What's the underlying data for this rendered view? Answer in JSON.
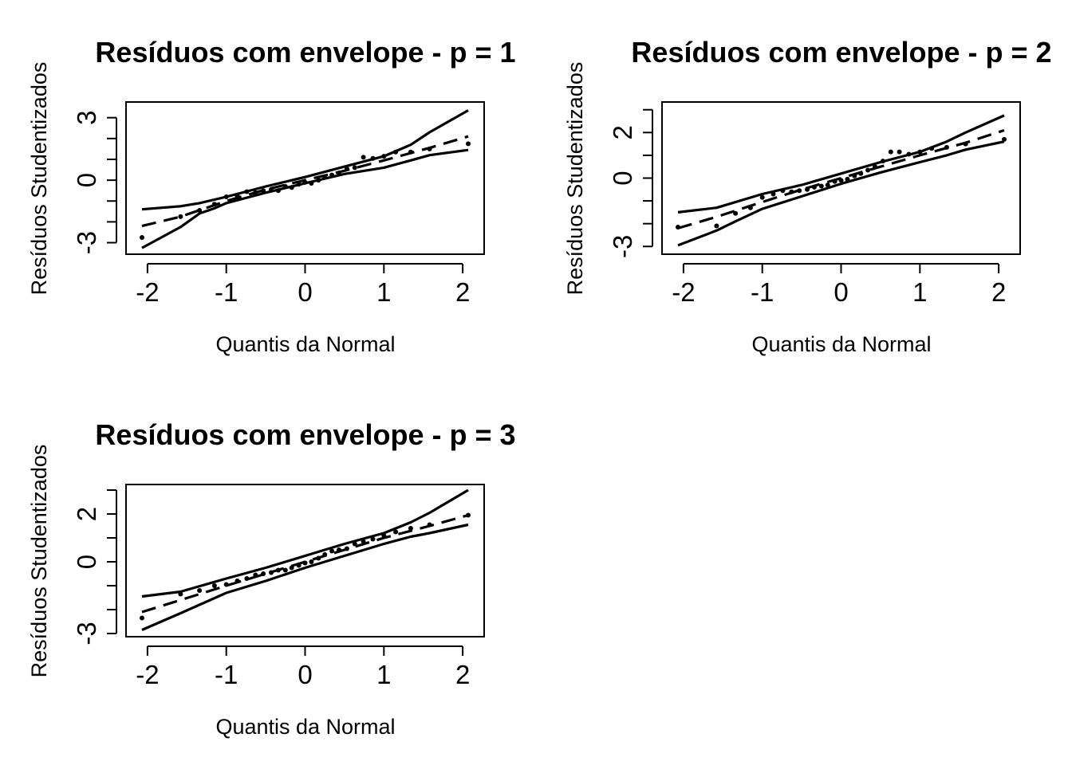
{
  "chart_data": [
    {
      "type": "scatter",
      "title": "Resíduos com envelope - p = 1",
      "xlabel": "Quantis da Normal",
      "ylabel": "Resíduos Studentizados",
      "xlim": [
        -2.1,
        2.1
      ],
      "ylim": [
        -3.4,
        3.6
      ],
      "xticks": [
        -2,
        -1,
        0,
        1,
        2
      ],
      "yticks": [
        -3,
        -2,
        -1,
        0,
        1,
        2,
        3
      ],
      "ytick_labels": [
        "-3",
        "",
        "",
        "0",
        "",
        "",
        "3"
      ],
      "x": [
        -2.07,
        -1.58,
        -1.34,
        -1.15,
        -1.0,
        -0.86,
        -0.74,
        -0.63,
        -0.53,
        -0.43,
        -0.34,
        -0.25,
        -0.17,
        -0.08,
        0.0,
        0.08,
        0.17,
        0.25,
        0.34,
        0.43,
        0.53,
        0.63,
        0.74,
        0.86,
        1.0,
        1.15,
        1.34,
        1.58,
        2.07
      ],
      "y": [
        -2.75,
        -1.75,
        -1.45,
        -1.15,
        -0.8,
        -0.75,
        -0.55,
        -0.6,
        -0.5,
        -0.45,
        -0.5,
        -0.3,
        -0.35,
        -0.2,
        -0.1,
        -0.15,
        0.0,
        0.15,
        0.25,
        0.35,
        0.55,
        0.6,
        1.1,
        1.05,
        1.15,
        1.35,
        1.35,
        1.5,
        1.75
      ],
      "series": [
        {
          "name": "envelope-lower",
          "x": [
            -2.07,
            -1.58,
            -1.34,
            -1.15,
            -1.0,
            -0.5,
            0.0,
            0.5,
            1.0,
            1.34,
            1.58,
            2.07
          ],
          "values": [
            -3.25,
            -2.25,
            -1.6,
            -1.35,
            -1.1,
            -0.6,
            -0.15,
            0.3,
            0.6,
            0.95,
            1.2,
            1.45
          ]
        },
        {
          "name": "envelope-upper",
          "x": [
            -2.07,
            -1.58,
            -1.34,
            -1.0,
            -0.5,
            0.0,
            0.5,
            1.0,
            1.34,
            1.58,
            2.07
          ],
          "values": [
            -1.4,
            -1.25,
            -1.1,
            -0.8,
            -0.3,
            0.15,
            0.65,
            1.15,
            1.7,
            2.3,
            3.35
          ]
        },
        {
          "name": "mean",
          "x": [
            -2.07,
            -1.58,
            -1.0,
            -0.5,
            0.0,
            0.5,
            1.0,
            1.58,
            2.07
          ],
          "values": [
            -2.2,
            -1.75,
            -1.0,
            -0.45,
            0.0,
            0.45,
            0.95,
            1.55,
            2.1
          ]
        }
      ]
    },
    {
      "type": "scatter",
      "title": "Resíduos com envelope - p = 2",
      "xlabel": "Quantis da Normal",
      "ylabel": "Resíduos Studentizados",
      "xlim": [
        -2.1,
        2.1
      ],
      "ylim": [
        -3.2,
        3.2
      ],
      "xticks": [
        -2,
        -1,
        0,
        1,
        2
      ],
      "yticks": [
        -3,
        -2,
        -1,
        0,
        1,
        2,
        3
      ],
      "ytick_labels": [
        "-3",
        "",
        "",
        "0",
        "",
        "2",
        ""
      ],
      "x": [
        -2.07,
        -1.58,
        -1.34,
        -1.15,
        -1.0,
        -0.86,
        -0.74,
        -0.63,
        -0.53,
        -0.43,
        -0.34,
        -0.25,
        -0.17,
        -0.08,
        0.0,
        0.08,
        0.17,
        0.25,
        0.34,
        0.43,
        0.53,
        0.63,
        0.74,
        0.86,
        1.0,
        1.15,
        1.34,
        1.58,
        2.07
      ],
      "y": [
        -2.15,
        -2.1,
        -1.55,
        -1.3,
        -0.85,
        -0.7,
        -0.55,
        -0.6,
        -0.55,
        -0.5,
        -0.4,
        -0.35,
        -0.3,
        -0.15,
        -0.1,
        -0.05,
        0.1,
        0.2,
        0.35,
        0.5,
        0.75,
        1.15,
        1.15,
        1.05,
        1.15,
        1.3,
        1.35,
        1.5,
        1.7
      ],
      "series": [
        {
          "name": "envelope-lower",
          "x": [
            -2.07,
            -1.58,
            -1.34,
            -1.0,
            -0.5,
            0.0,
            0.5,
            1.0,
            1.34,
            1.58,
            2.07
          ],
          "values": [
            -2.95,
            -2.3,
            -1.9,
            -1.35,
            -0.8,
            -0.25,
            0.25,
            0.7,
            1.0,
            1.25,
            1.6
          ]
        },
        {
          "name": "envelope-upper",
          "x": [
            -2.07,
            -1.58,
            -1.0,
            -0.5,
            0.0,
            0.5,
            1.0,
            1.34,
            1.58,
            2.07
          ],
          "values": [
            -1.5,
            -1.3,
            -0.7,
            -0.3,
            0.2,
            0.7,
            1.15,
            1.6,
            2.0,
            2.75
          ]
        },
        {
          "name": "mean",
          "x": [
            -2.07,
            -1.58,
            -1.0,
            -0.5,
            0.0,
            0.5,
            1.0,
            1.58,
            2.07
          ],
          "values": [
            -2.2,
            -1.7,
            -1.05,
            -0.5,
            0.0,
            0.5,
            1.0,
            1.55,
            2.1
          ]
        }
      ]
    },
    {
      "type": "scatter",
      "title": "Resíduos com envelope - p = 3",
      "xlabel": "Quantis da Normal",
      "ylabel": "Resíduos Studentizados",
      "xlim": [
        -2.1,
        2.1
      ],
      "ylim": [
        -3.0,
        3.1
      ],
      "xticks": [
        -2,
        -1,
        0,
        1,
        2
      ],
      "yticks": [
        -3,
        -2,
        -1,
        0,
        1,
        2,
        3
      ],
      "ytick_labels": [
        "-3",
        "",
        "",
        "0",
        "",
        "2",
        ""
      ],
      "x": [
        -2.07,
        -1.58,
        -1.34,
        -1.15,
        -1.0,
        -0.86,
        -0.74,
        -0.63,
        -0.53,
        -0.43,
        -0.34,
        -0.25,
        -0.17,
        -0.08,
        0.0,
        0.08,
        0.17,
        0.25,
        0.34,
        0.43,
        0.53,
        0.63,
        0.74,
        0.86,
        1.0,
        1.15,
        1.34,
        1.58,
        2.07
      ],
      "y": [
        -2.35,
        -1.35,
        -1.2,
        -1.0,
        -0.95,
        -0.8,
        -0.7,
        -0.55,
        -0.5,
        -0.45,
        -0.35,
        -0.35,
        -0.25,
        -0.15,
        -0.05,
        0.0,
        0.15,
        0.3,
        0.45,
        0.5,
        0.55,
        0.75,
        0.85,
        0.95,
        1.1,
        1.25,
        1.4,
        1.55,
        1.95
      ],
      "series": [
        {
          "name": "envelope-lower",
          "x": [
            -2.07,
            -1.58,
            -1.0,
            -0.5,
            0.0,
            0.5,
            1.0,
            1.34,
            1.58,
            2.07
          ],
          "values": [
            -2.85,
            -2.15,
            -1.3,
            -0.8,
            -0.25,
            0.25,
            0.75,
            1.05,
            1.2,
            1.55
          ]
        },
        {
          "name": "envelope-upper",
          "x": [
            -2.07,
            -1.58,
            -1.0,
            -0.5,
            0.0,
            0.5,
            1.0,
            1.34,
            1.58,
            2.07
          ],
          "values": [
            -1.45,
            -1.25,
            -0.7,
            -0.25,
            0.25,
            0.75,
            1.2,
            1.65,
            2.05,
            3.0
          ]
        },
        {
          "name": "mean",
          "x": [
            -2.07,
            -1.58,
            -1.0,
            -0.5,
            0.0,
            0.5,
            1.0,
            1.58,
            2.07
          ],
          "values": [
            -2.1,
            -1.6,
            -1.0,
            -0.5,
            0.0,
            0.5,
            1.0,
            1.5,
            1.95
          ]
        }
      ]
    }
  ]
}
